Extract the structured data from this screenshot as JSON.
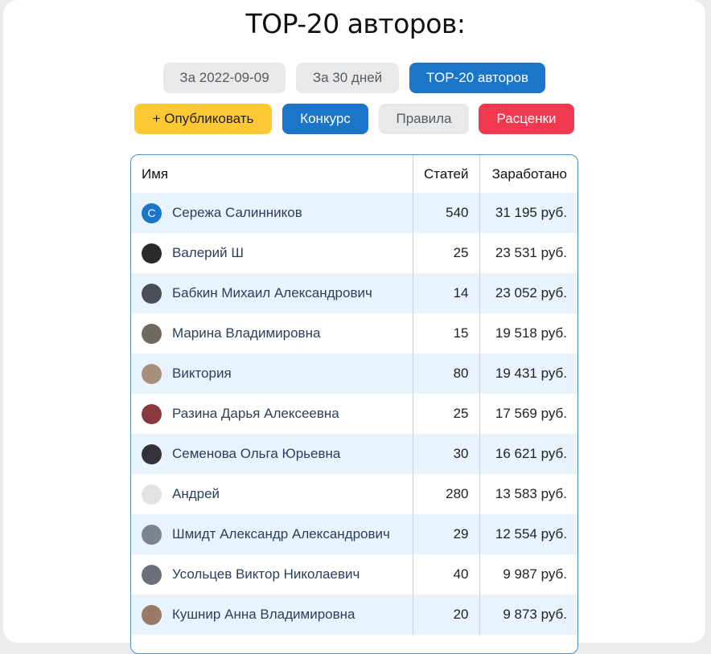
{
  "page": {
    "title": "TOP-20 авторов:"
  },
  "period_tabs": [
    {
      "label": "За 2022-09-09",
      "active": false
    },
    {
      "label": "За 30 дней",
      "active": false
    },
    {
      "label": "TOP-20 авторов",
      "active": true
    }
  ],
  "actions": {
    "publish": "+ Опубликовать",
    "contest": "Конкурс",
    "rules": "Правила",
    "prices": "Расценки"
  },
  "table": {
    "headers": {
      "name": "Имя",
      "articles": "Статей",
      "earned": "Заработано"
    },
    "rows": [
      {
        "name": "Сережа Салинников",
        "articles": "540",
        "earned": "31 195 руб.",
        "avatar_letter": "С",
        "avatar_color": "#1b75c8"
      },
      {
        "name": "Валерий Ш",
        "articles": "25",
        "earned": "23 531 руб.",
        "avatar_color": "#2a2a2a"
      },
      {
        "name": "Бабкин Михаил Александрович",
        "articles": "14",
        "earned": "23 052 руб.",
        "avatar_color": "#4a4e57"
      },
      {
        "name": "Марина Владимировна",
        "articles": "15",
        "earned": "19 518 руб.",
        "avatar_color": "#6f6a5f"
      },
      {
        "name": "Виктория",
        "articles": "80",
        "earned": "19 431 руб.",
        "avatar_color": "#a88f7c"
      },
      {
        "name": "Разина Дарья Алексеевна",
        "articles": "25",
        "earned": "17 569 руб.",
        "avatar_color": "#8a3a3f"
      },
      {
        "name": "Семенова Ольга Юрьевна",
        "articles": "30",
        "earned": "16 621 руб.",
        "avatar_color": "#35303a"
      },
      {
        "name": "Андрей",
        "articles": "280",
        "earned": "13 583 руб.",
        "avatar_color": "#e2e2e2"
      },
      {
        "name": "Шмидт Александр Александрович",
        "articles": "29",
        "earned": "12 554 руб.",
        "avatar_color": "#7c848d"
      },
      {
        "name": "Усольцев Виктор Николаевич",
        "articles": "40",
        "earned": "9 987 руб.",
        "avatar_color": "#6b7078"
      },
      {
        "name": "Кушнир Анна Владимировна",
        "articles": "20",
        "earned": "9 873 руб.",
        "avatar_color": "#9a7a66"
      }
    ]
  }
}
